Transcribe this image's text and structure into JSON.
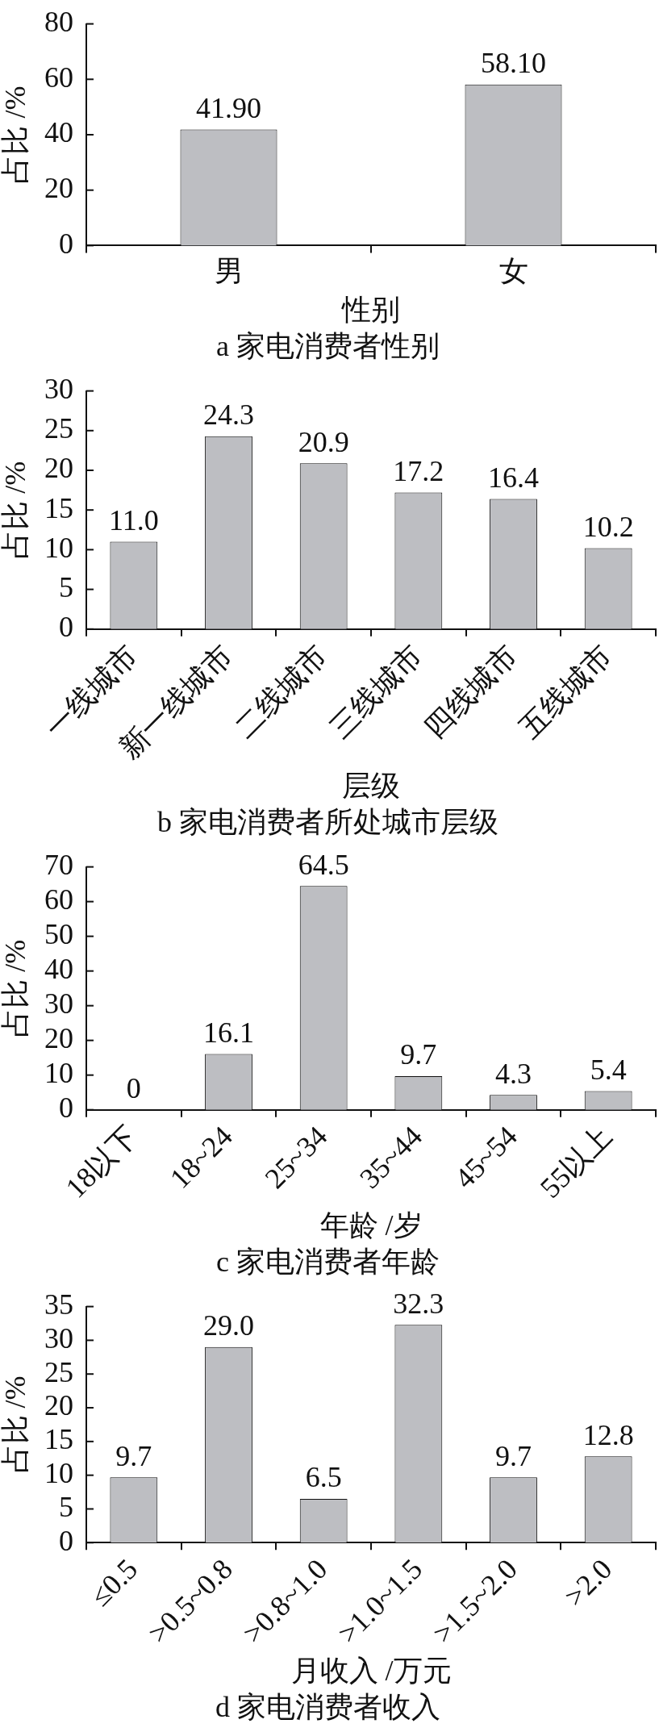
{
  "chart_data": [
    {
      "type": "bar",
      "title": "a 家电消费者性别",
      "xlabel": "性别",
      "ylabel": "占比 /%",
      "categories": [
        "男",
        "女"
      ],
      "values": [
        41.9,
        58.1
      ],
      "value_labels": [
        "41.90",
        "58.10"
      ],
      "color": "#bdbec2",
      "ylim": [
        0,
        80
      ],
      "yticks": [
        0,
        20,
        40,
        60,
        80
      ]
    },
    {
      "type": "bar",
      "title": "b 家电消费者所处城市层级",
      "xlabel": "层级",
      "ylabel": "占比 /%",
      "categories": [
        "一线城市",
        "新一线城市",
        "二线城市",
        "三线城市",
        "四线城市",
        "五线城市"
      ],
      "values": [
        11.0,
        24.3,
        20.9,
        17.2,
        16.4,
        10.2
      ],
      "value_labels": [
        "11.0",
        "24.3",
        "20.9",
        "17.2",
        "16.4",
        "10.2"
      ],
      "color": "#bdbec2",
      "ylim": [
        0,
        30
      ],
      "yticks": [
        0,
        5,
        10,
        15,
        20,
        25,
        30
      ]
    },
    {
      "type": "bar",
      "title": "c 家电消费者年龄",
      "xlabel": "年龄 /岁",
      "ylabel": "占比 /%",
      "categories": [
        "18以下",
        "18~24",
        "25~34",
        "35~44",
        "45~54",
        "55以上"
      ],
      "values": [
        0,
        16.1,
        64.5,
        9.7,
        4.3,
        5.4
      ],
      "data_labels": true,
      "color": "#bdbec2",
      "ylim": [
        0,
        70
      ],
      "yticks": [
        0,
        10,
        20,
        30,
        40,
        50,
        60,
        70
      ]
    },
    {
      "type": "bar",
      "title": "d 家电消费者收入",
      "xlabel": "月收入 /万元",
      "ylabel": "占比 /%",
      "categories": [
        "≤0.5",
        ">0.5~0.8",
        ">0.8~1.0",
        ">1.0~1.5",
        ">1.5~2.0",
        ">2.0"
      ],
      "values": [
        9.7,
        29.0,
        6.5,
        32.3,
        9.7,
        12.8
      ],
      "value_labels": [
        "9.7",
        "29.0",
        "6.5",
        "32.3",
        "9.7",
        "12.8"
      ],
      "color": "#bdbec2",
      "ylim": [
        0,
        35
      ],
      "yticks": [
        0,
        5,
        10,
        15,
        20,
        25,
        30,
        35
      ]
    }
  ]
}
